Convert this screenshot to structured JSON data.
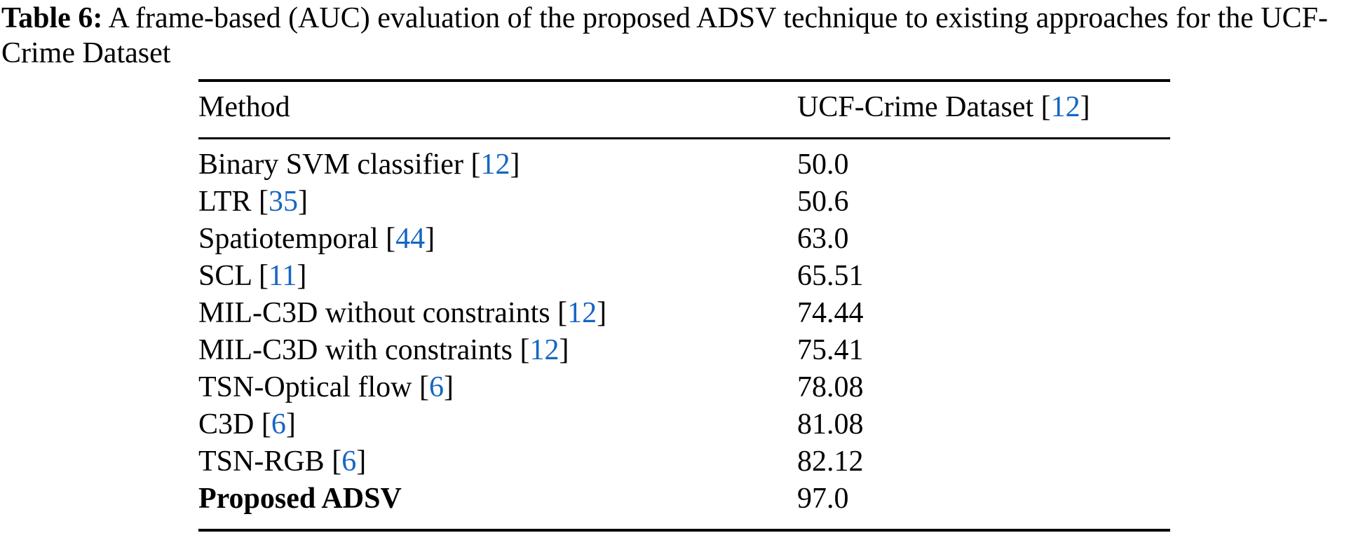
{
  "caption": {
    "label": "Table 6:",
    "body": "A frame-based (AUC) evaluation of the proposed ADSV technique to existing approaches for the UCF-Crime Dataset"
  },
  "table": {
    "header": {
      "method": "Method",
      "dataset_label": "UCF-Crime Dataset",
      "dataset_citation": "12",
      "bracket_open": "[",
      "bracket_close": "]"
    },
    "rows": [
      {
        "method": "Binary SVM classifier",
        "citation": "12",
        "value": "50.0",
        "bold": false
      },
      {
        "method": "LTR",
        "citation": "35",
        "value": "50.6",
        "bold": false
      },
      {
        "method": "Spatiotemporal",
        "citation": "44",
        "value": "63.0",
        "bold": false
      },
      {
        "method": "SCL",
        "citation": "11",
        "value": "65.51",
        "bold": false
      },
      {
        "method": "MIL-C3D without constraints",
        "citation": "12",
        "value": "74.44",
        "bold": false
      },
      {
        "method": "MIL-C3D with constraints",
        "citation": "12",
        "value": "75.41",
        "bold": false
      },
      {
        "method": "TSN-Optical flow",
        "citation": "6",
        "value": "78.08",
        "bold": false
      },
      {
        "method": "C3D",
        "citation": "6",
        "value": "81.08",
        "bold": false
      },
      {
        "method": "TSN-RGB",
        "citation": "6",
        "value": "82.12",
        "bold": false
      },
      {
        "method": "Proposed ADSV",
        "citation": null,
        "value": "97.0",
        "bold": true
      }
    ]
  },
  "colors": {
    "citation_blue": "#1666c2",
    "text_black": "#000000",
    "background": "#ffffff"
  }
}
